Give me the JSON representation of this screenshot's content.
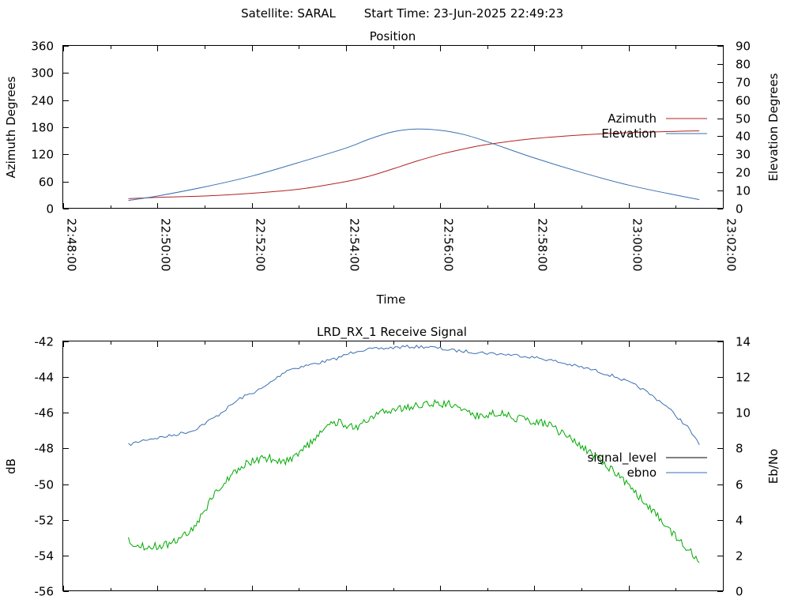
{
  "header": {
    "satellite": "Satellite: SARAL",
    "start_time": "Start Time: 23-Jun-2025 22:49:23"
  },
  "colors": {
    "azimuth": "#b22222",
    "elevation": "#3a6fb0",
    "signal_level": "#000000",
    "ebno_trace": "#3a6fb0",
    "signal_trace": "#00aa00"
  },
  "chart_data": [
    {
      "type": "line",
      "title": "Position",
      "xlabel": "Time",
      "ylabel": "Azimuth Degrees",
      "y2label": "Elevation Degrees",
      "x_ticks": [
        "22:48:00",
        "22:50:00",
        "22:52:00",
        "22:54:00",
        "22:56:00",
        "22:58:00",
        "23:00:00",
        "23:02:00"
      ],
      "xlim": [
        "22:48:00",
        "23:02:00"
      ],
      "y_ticks": [
        "0",
        "60",
        "120",
        "180",
        "240",
        "300",
        "360"
      ],
      "ylim": [
        0,
        360
      ],
      "y2_ticks": [
        "0",
        "10",
        "20",
        "30",
        "40",
        "50",
        "60",
        "70",
        "80",
        "90"
      ],
      "y2lim": [
        0,
        90
      ],
      "legend_position": "right",
      "x": [
        "22:49:23",
        "22:50:00",
        "22:51:00",
        "22:52:00",
        "22:53:00",
        "22:54:00",
        "22:54:30",
        "22:55:00",
        "22:55:30",
        "22:56:00",
        "22:56:30",
        "22:57:00",
        "22:58:00",
        "22:59:00",
        "23:00:00",
        "23:01:00",
        "23:01:30"
      ],
      "series": [
        {
          "name": "Azimuth",
          "axis": "left",
          "values": [
            22,
            25,
            28,
            34,
            43,
            60,
            72,
            88,
            105,
            120,
            132,
            142,
            155,
            163,
            168,
            171,
            172
          ]
        },
        {
          "name": "Elevation",
          "axis": "right",
          "values": [
            4.5,
            7,
            12,
            18,
            25.5,
            33.5,
            38.5,
            42.5,
            44,
            43.3,
            41,
            37,
            28,
            20,
            13,
            7.5,
            5
          ]
        }
      ]
    },
    {
      "type": "line",
      "title": "LRD_RX_1 Receive Signal",
      "ylabel": "dB",
      "y2label": "Eb/No",
      "xlim": [
        "22:48:00",
        "23:02:00"
      ],
      "y_ticks": [
        "-42",
        "-44",
        "-46",
        "-48",
        "-50",
        "-52",
        "-54",
        "-56"
      ],
      "ylim": [
        -56,
        -42
      ],
      "y2_ticks": [
        "0",
        "2",
        "4",
        "6",
        "8",
        "10",
        "12",
        "14"
      ],
      "y2lim": [
        0,
        14
      ],
      "legend_position": "right",
      "x": [
        "22:49:23",
        "22:49:45",
        "22:50:15",
        "22:50:45",
        "22:51:15",
        "22:51:45",
        "22:52:15",
        "22:52:45",
        "22:53:15",
        "22:53:45",
        "22:54:15",
        "22:54:45",
        "22:55:15",
        "22:55:45",
        "22:56:15",
        "22:56:45",
        "22:57:15",
        "22:57:45",
        "22:58:15",
        "22:58:45",
        "22:59:15",
        "22:59:45",
        "23:00:15",
        "23:00:45",
        "23:01:15",
        "23:01:30"
      ],
      "series": [
        {
          "name": "signal_level",
          "axis": "left",
          "values": [
            -47.8,
            -47.5,
            -47.3,
            -47.0,
            -46.2,
            -45.2,
            -44.6,
            -43.6,
            -43.3,
            -43.0,
            -42.5,
            -42.4,
            -42.3,
            -42.3,
            -42.5,
            -42.6,
            -42.7,
            -42.8,
            -43.0,
            -43.3,
            -43.6,
            -44.0,
            -44.6,
            -45.5,
            -46.8,
            -47.8
          ]
        },
        {
          "name": "ebno",
          "axis": "right",
          "values": [
            2.8,
            2.5,
            2.6,
            3.5,
            5.6,
            7.0,
            7.5,
            7.3,
            8.3,
            9.5,
            9.2,
            10.0,
            10.3,
            10.5,
            10.5,
            9.8,
            10.0,
            9.6,
            9.4,
            8.6,
            7.6,
            6.6,
            5.2,
            3.8,
            2.4,
            1.6
          ]
        }
      ]
    }
  ]
}
